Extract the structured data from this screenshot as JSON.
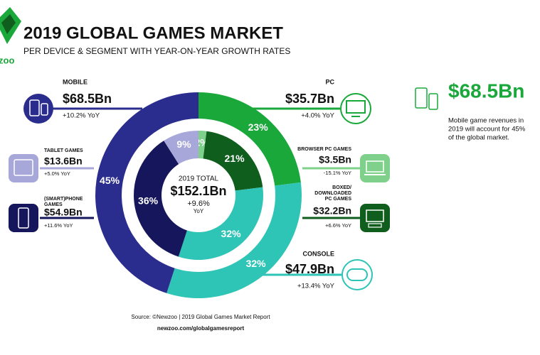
{
  "logo": "zoo",
  "chart_data": {
    "type": "donut",
    "title": "2019 GLOBAL GAMES MARKET",
    "subtitle": "PER DEVICE & SEGMENT WITH YEAR-ON-YEAR GROWTH RATES",
    "rings": [
      {
        "values": [
          23,
          32,
          45
        ],
        "value_labels": [
          "23%",
          "32%",
          "45%"
        ],
        "colors": [
          "#1aa83b",
          "#2ec4b6",
          "#2b2d8e"
        ]
      },
      {
        "values": [
          2,
          21,
          32,
          36,
          9
        ],
        "value_labels": [
          "2%",
          "21%",
          "32%",
          "36%",
          "9%"
        ],
        "colors": [
          "#7fd08a",
          "#0f5e1e",
          "#2ec4b6",
          "#16165c",
          "#a8a7da"
        ]
      }
    ],
    "total": {
      "label": "2019 TOTAL",
      "value": "$152.1Bn",
      "growth": "+9.6%",
      "unit": "YoY"
    },
    "callouts": [
      {
        "label": [
          "MOBILE"
        ],
        "revenue": "$68.5Bn",
        "growth": "+10.2% YoY"
      },
      {
        "label": [
          "TABLET GAMES"
        ],
        "revenue": "$13.6Bn",
        "growth": "+5.0% YoY"
      },
      {
        "label": [
          "(SMART)PHONE",
          "GAMES"
        ],
        "revenue": "$54.9Bn",
        "growth": "+11.6% YoY"
      },
      {
        "label": [
          "PC"
        ],
        "revenue": "$35.7Bn",
        "growth": "+4.0% YoY"
      },
      {
        "label": [
          "BROWSER PC GAMES"
        ],
        "revenue": "$3.5Bn",
        "growth": "-15.1% YoY"
      },
      {
        "label": [
          "BOXED/",
          "DOWNLOADED",
          "PC GAMES"
        ],
        "revenue": "$32.2Bn",
        "growth": "+6.6% YoY"
      },
      {
        "label": [
          "CONSOLE"
        ],
        "revenue": "$47.9Bn",
        "growth": "+13.4% YoY"
      }
    ],
    "side": {
      "value": "$68.5Bn",
      "text": [
        "Mobile game revenues in",
        "2019 will account for 45%",
        "of the global market."
      ]
    },
    "source": "Source: ©Newzoo | 2019 Global Games Market Report",
    "url": "newzoo.com/globalgamesreport"
  }
}
